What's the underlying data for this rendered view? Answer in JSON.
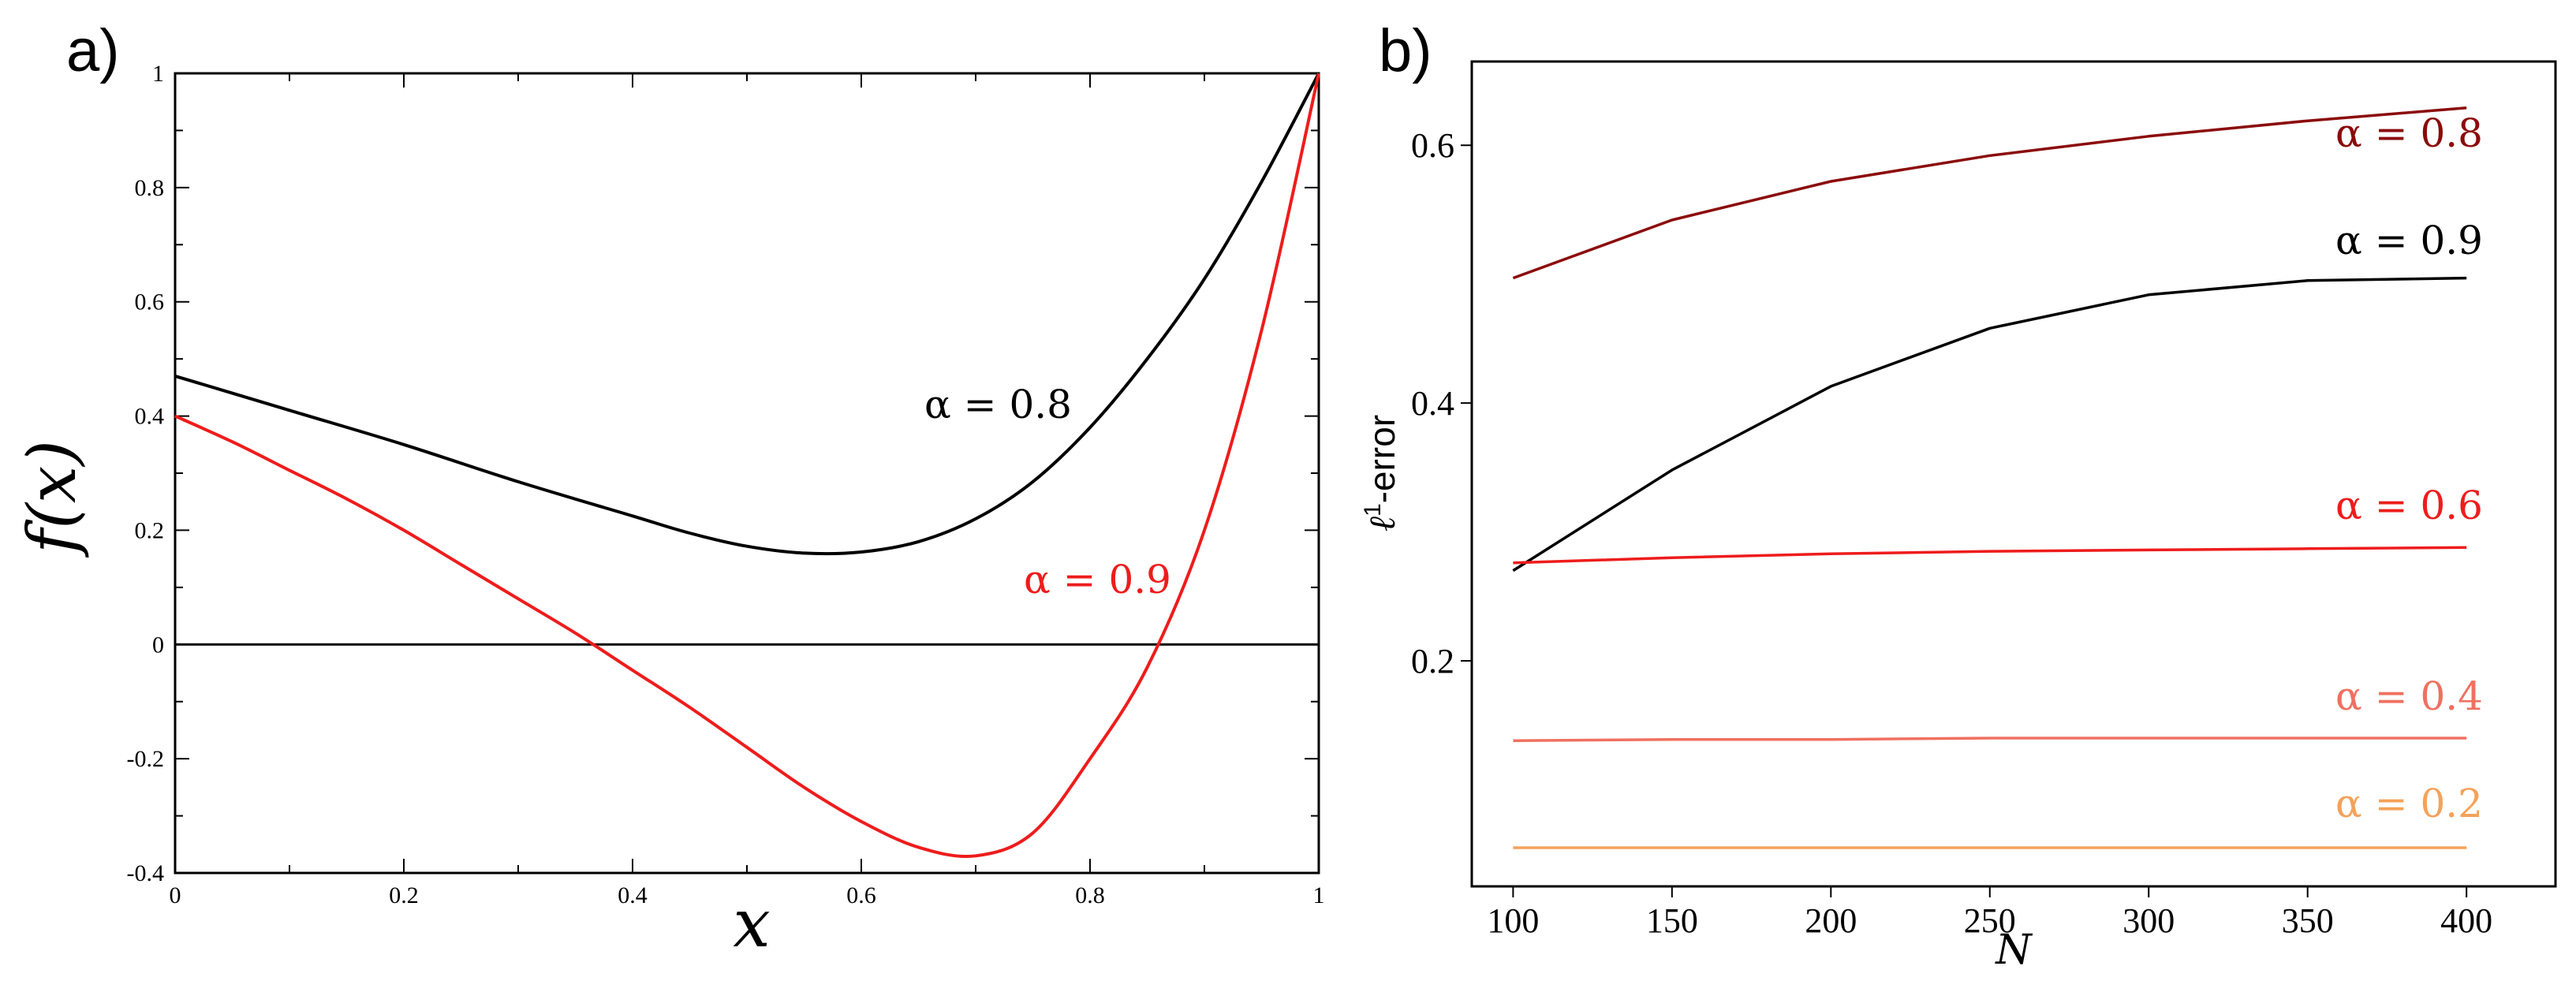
{
  "chart_data": [
    {
      "panel": "a)",
      "type": "line",
      "xlabel": "x",
      "ylabel": "f(x)",
      "xlim": [
        0,
        1
      ],
      "ylim": [
        -0.4,
        1
      ],
      "xticks": [
        0,
        0.2,
        0.4,
        0.6,
        0.8,
        1
      ],
      "xtick_labels": [
        "0",
        "0.2",
        "0.4",
        "0.6",
        "0.8",
        "1"
      ],
      "yticks": [
        -0.4,
        -0.2,
        0,
        0.2,
        0.4,
        0.6,
        0.8,
        1
      ],
      "ytick_labels": [
        "-0.4",
        "-0.2",
        "0",
        "0.2",
        "0.4",
        "0.6",
        "0.8",
        "1"
      ],
      "zero_line": true,
      "series": [
        {
          "name": "α = 0.8",
          "label": "α = 0.8",
          "color": "#000000",
          "x": [
            0,
            0.1,
            0.2,
            0.3,
            0.4,
            0.45,
            0.5,
            0.55,
            0.6,
            0.65,
            0.7,
            0.75,
            0.8,
            0.85,
            0.9,
            0.95,
            1.0
          ],
          "y": [
            0.47,
            0.41,
            0.35,
            0.285,
            0.225,
            0.195,
            0.172,
            0.16,
            0.162,
            0.18,
            0.22,
            0.285,
            0.38,
            0.5,
            0.64,
            0.81,
            1.0
          ]
        },
        {
          "name": "α = 0.9",
          "label": "α = 0.9",
          "color": "#ee1c1c",
          "x": [
            0,
            0.05,
            0.1,
            0.15,
            0.2,
            0.25,
            0.3,
            0.35,
            0.4,
            0.45,
            0.5,
            0.55,
            0.6,
            0.65,
            0.7,
            0.75,
            0.8,
            0.85,
            0.9,
            0.95,
            1.0
          ],
          "y": [
            0.4,
            0.355,
            0.305,
            0.255,
            0.2,
            0.14,
            0.08,
            0.02,
            -0.045,
            -0.11,
            -0.18,
            -0.25,
            -0.31,
            -0.355,
            -0.37,
            -0.33,
            -0.2,
            -0.04,
            0.2,
            0.55,
            1.0
          ]
        }
      ]
    },
    {
      "panel": "b)",
      "type": "line",
      "xlabel": "N",
      "ylabel": "ℓ1-error",
      "ylabel_base": "ℓ",
      "ylabel_sup": "1",
      "ylabel_rest": "-error",
      "xlim": [
        87,
        428
      ],
      "ylim": [
        0.025,
        0.665
      ],
      "xticks": [
        100,
        150,
        200,
        250,
        300,
        350,
        400
      ],
      "xtick_labels": [
        "100",
        "150",
        "200",
        "250",
        "300",
        "350",
        "400"
      ],
      "yticks": [
        0.2,
        0.4,
        0.6
      ],
      "ytick_labels": [
        "0.2",
        "0.4",
        "0.6"
      ],
      "series": [
        {
          "name": "α = 0.8",
          "label": "α = 0.8",
          "color": "#8b0a0a",
          "x": [
            100,
            150,
            200,
            250,
            300,
            350,
            400
          ],
          "y": [
            0.497,
            0.542,
            0.572,
            0.592,
            0.607,
            0.619,
            0.629
          ]
        },
        {
          "name": "α = 0.9",
          "label": "α = 0.9",
          "color": "#000000",
          "x": [
            100,
            150,
            200,
            250,
            300,
            350,
            400
          ],
          "y": [
            0.27,
            0.348,
            0.413,
            0.458,
            0.484,
            0.495,
            0.497
          ]
        },
        {
          "name": "α = 0.6",
          "label": "α = 0.6",
          "color": "#ee1c1c",
          "x": [
            100,
            150,
            200,
            250,
            300,
            350,
            400
          ],
          "y": [
            0.276,
            0.28,
            0.283,
            0.285,
            0.286,
            0.287,
            0.288
          ]
        },
        {
          "name": "α = 0.4",
          "label": "α = 0.4",
          "color": "#f07060",
          "x": [
            100,
            150,
            200,
            250,
            300,
            350,
            400
          ],
          "y": [
            0.138,
            0.139,
            0.139,
            0.14,
            0.14,
            0.14,
            0.14
          ]
        },
        {
          "name": "α = 0.2",
          "label": "α = 0.2",
          "color": "#f5a25a",
          "x": [
            100,
            150,
            200,
            250,
            300,
            350,
            400
          ],
          "y": [
            0.055,
            0.055,
            0.055,
            0.055,
            0.055,
            0.055,
            0.055
          ]
        }
      ]
    }
  ]
}
